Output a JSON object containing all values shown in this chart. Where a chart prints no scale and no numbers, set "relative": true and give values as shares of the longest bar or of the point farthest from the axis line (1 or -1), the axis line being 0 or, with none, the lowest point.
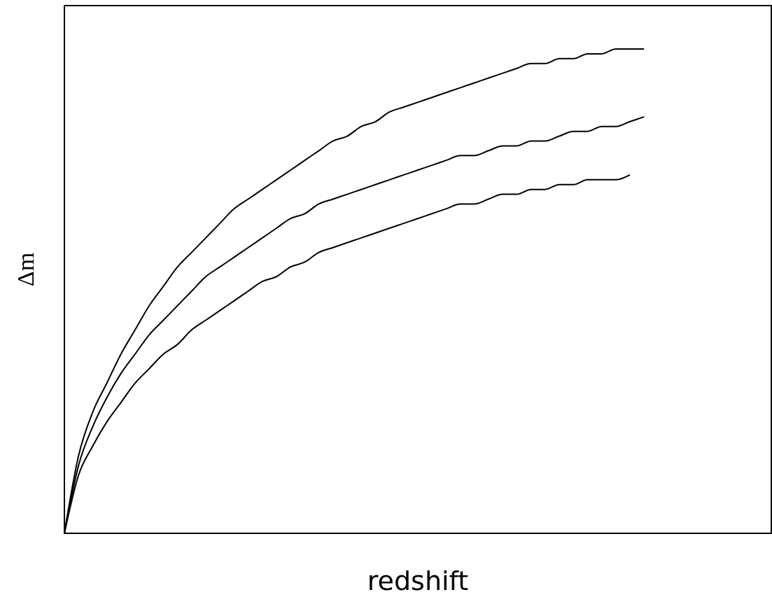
{
  "chart_data": {
    "type": "line",
    "relative": true,
    "xlabel": "redshift",
    "ylabel": "Δm",
    "categories": [
      null,
      null,
      null,
      null,
      null,
      null,
      null,
      null,
      null,
      null,
      null,
      null,
      null,
      null,
      null,
      null,
      null,
      null,
      null,
      null,
      null,
      null,
      null,
      null,
      null,
      null,
      null,
      null,
      null,
      null,
      null,
      null,
      null,
      null,
      null,
      null,
      null,
      null,
      null,
      null,
      null,
      null,
      null,
      null,
      null,
      null,
      null,
      null,
      null,
      null,
      null
    ],
    "series": [
      {
        "color": "#000000",
        "values": [
          0,
          0.16,
          0.25,
          0.31,
          0.37,
          0.42,
          0.47,
          0.51,
          0.55,
          0.58,
          0.61,
          0.64,
          0.67,
          0.69,
          0.71,
          0.73,
          0.75,
          0.77,
          0.79,
          0.81,
          0.82,
          0.84,
          0.85,
          0.87,
          0.88,
          0.89,
          0.9,
          0.91,
          0.92,
          0.93,
          0.94,
          0.95,
          0.96,
          0.97,
          0.97,
          0.98,
          0.98,
          0.99,
          0.99,
          1,
          1,
          1,
          null,
          null,
          null,
          null,
          null,
          null,
          null,
          null,
          null
        ]
      },
      {
        "color": "#000000",
        "values": [
          0,
          0.14,
          0.22,
          0.28,
          0.33,
          0.37,
          0.41,
          0.44,
          0.47,
          0.5,
          0.53,
          0.55,
          0.57,
          0.59,
          0.61,
          0.63,
          0.65,
          0.66,
          0.68,
          0.69,
          0.7,
          0.71,
          0.72,
          0.73,
          0.74,
          0.75,
          0.76,
          0.77,
          0.78,
          0.78,
          0.79,
          0.8,
          0.8,
          0.81,
          0.81,
          0.82,
          0.83,
          0.83,
          0.84,
          0.84,
          0.85,
          0.86,
          null,
          null,
          null,
          null,
          null,
          null,
          null,
          null,
          null
        ]
      },
      {
        "color": "#000000",
        "values": [
          0,
          0.12,
          0.18,
          0.23,
          0.27,
          0.31,
          0.34,
          0.37,
          0.39,
          0.42,
          0.44,
          0.46,
          0.48,
          0.5,
          0.52,
          0.53,
          0.55,
          0.56,
          0.58,
          0.59,
          0.6,
          0.61,
          0.62,
          0.63,
          0.64,
          0.65,
          0.66,
          0.67,
          0.68,
          0.68,
          0.69,
          0.7,
          0.7,
          0.71,
          0.71,
          0.72,
          0.72,
          0.73,
          0.73,
          0.73,
          0.74,
          null,
          null,
          null,
          null,
          null,
          null,
          null,
          null,
          null,
          null
        ]
      }
    ]
  }
}
